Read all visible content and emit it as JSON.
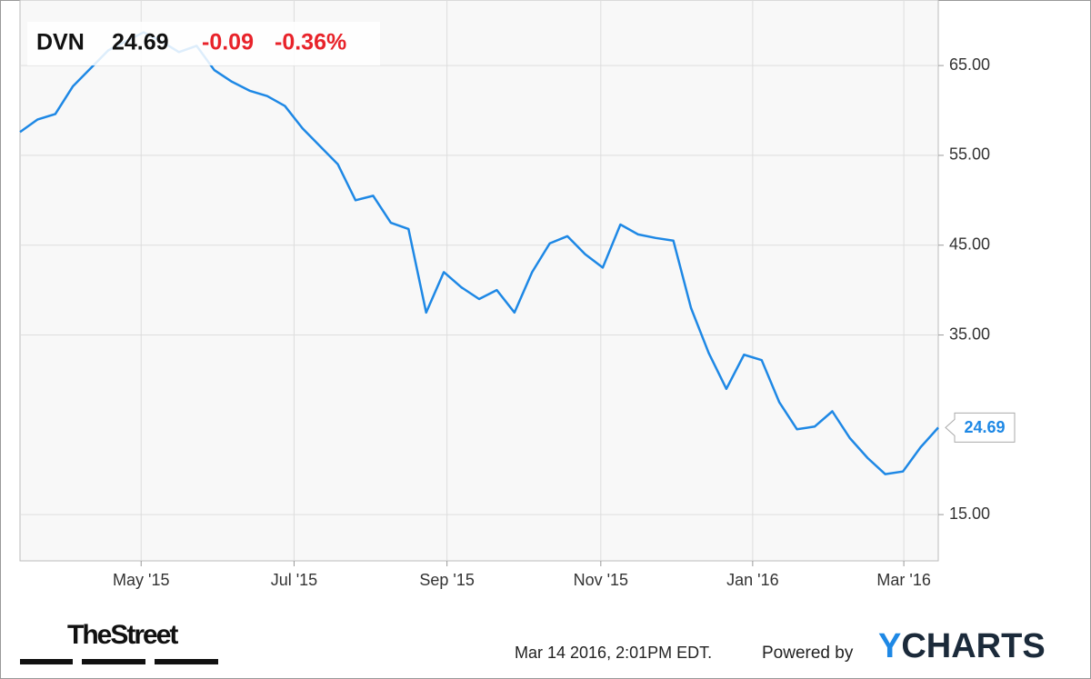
{
  "chart_data": {
    "type": "line",
    "symbol": "DVN",
    "last": 24.69,
    "change": "-0.09",
    "change_pct": "-0.36%",
    "color": "#1e88e5",
    "grid": true,
    "values": [
      57.6,
      59.0,
      59.6,
      62.7,
      64.7,
      66.7,
      67.7,
      68.7,
      67.7,
      66.5,
      67.2,
      64.5,
      63.2,
      62.2,
      61.6,
      60.5,
      58.0,
      56.0,
      54.0,
      50.0,
      50.5,
      47.5,
      46.8,
      37.5,
      42.0,
      40.3,
      39.0,
      40.0,
      37.5,
      42.0,
      45.2,
      46.0,
      44.0,
      42.5,
      47.3,
      46.2,
      45.8,
      45.5,
      38.0,
      33.0,
      29.0,
      32.8,
      32.2,
      27.5,
      24.5,
      24.8,
      26.5,
      23.5,
      21.3,
      19.5,
      19.8,
      22.5,
      24.69
    ],
    "xlim": [
      0,
      52
    ],
    "xticks": [
      {
        "value": 6.86,
        "label": "May '15"
      },
      {
        "value": 15.52,
        "label": "Jul '15"
      },
      {
        "value": 24.18,
        "label": "Sep '15"
      },
      {
        "value": 32.89,
        "label": "Nov '15"
      },
      {
        "value": 41.49,
        "label": "Jan '16"
      },
      {
        "value": 50.05,
        "label": "Mar '16"
      }
    ],
    "ylim": [
      9.85,
      72.3
    ],
    "yticks": [
      {
        "value": 15,
        "label": "15.00"
      },
      {
        "value": 35,
        "label": "35.00"
      },
      {
        "value": 45,
        "label": "45.00"
      },
      {
        "value": 55,
        "label": "55.00"
      },
      {
        "value": 65,
        "label": "65.00"
      }
    ]
  },
  "footer": {
    "brand": "TheStreet",
    "timestamp": "Mar 14 2016, 2:01PM EDT.",
    "powered": "Powered by",
    "logo": "YCHARTS"
  }
}
